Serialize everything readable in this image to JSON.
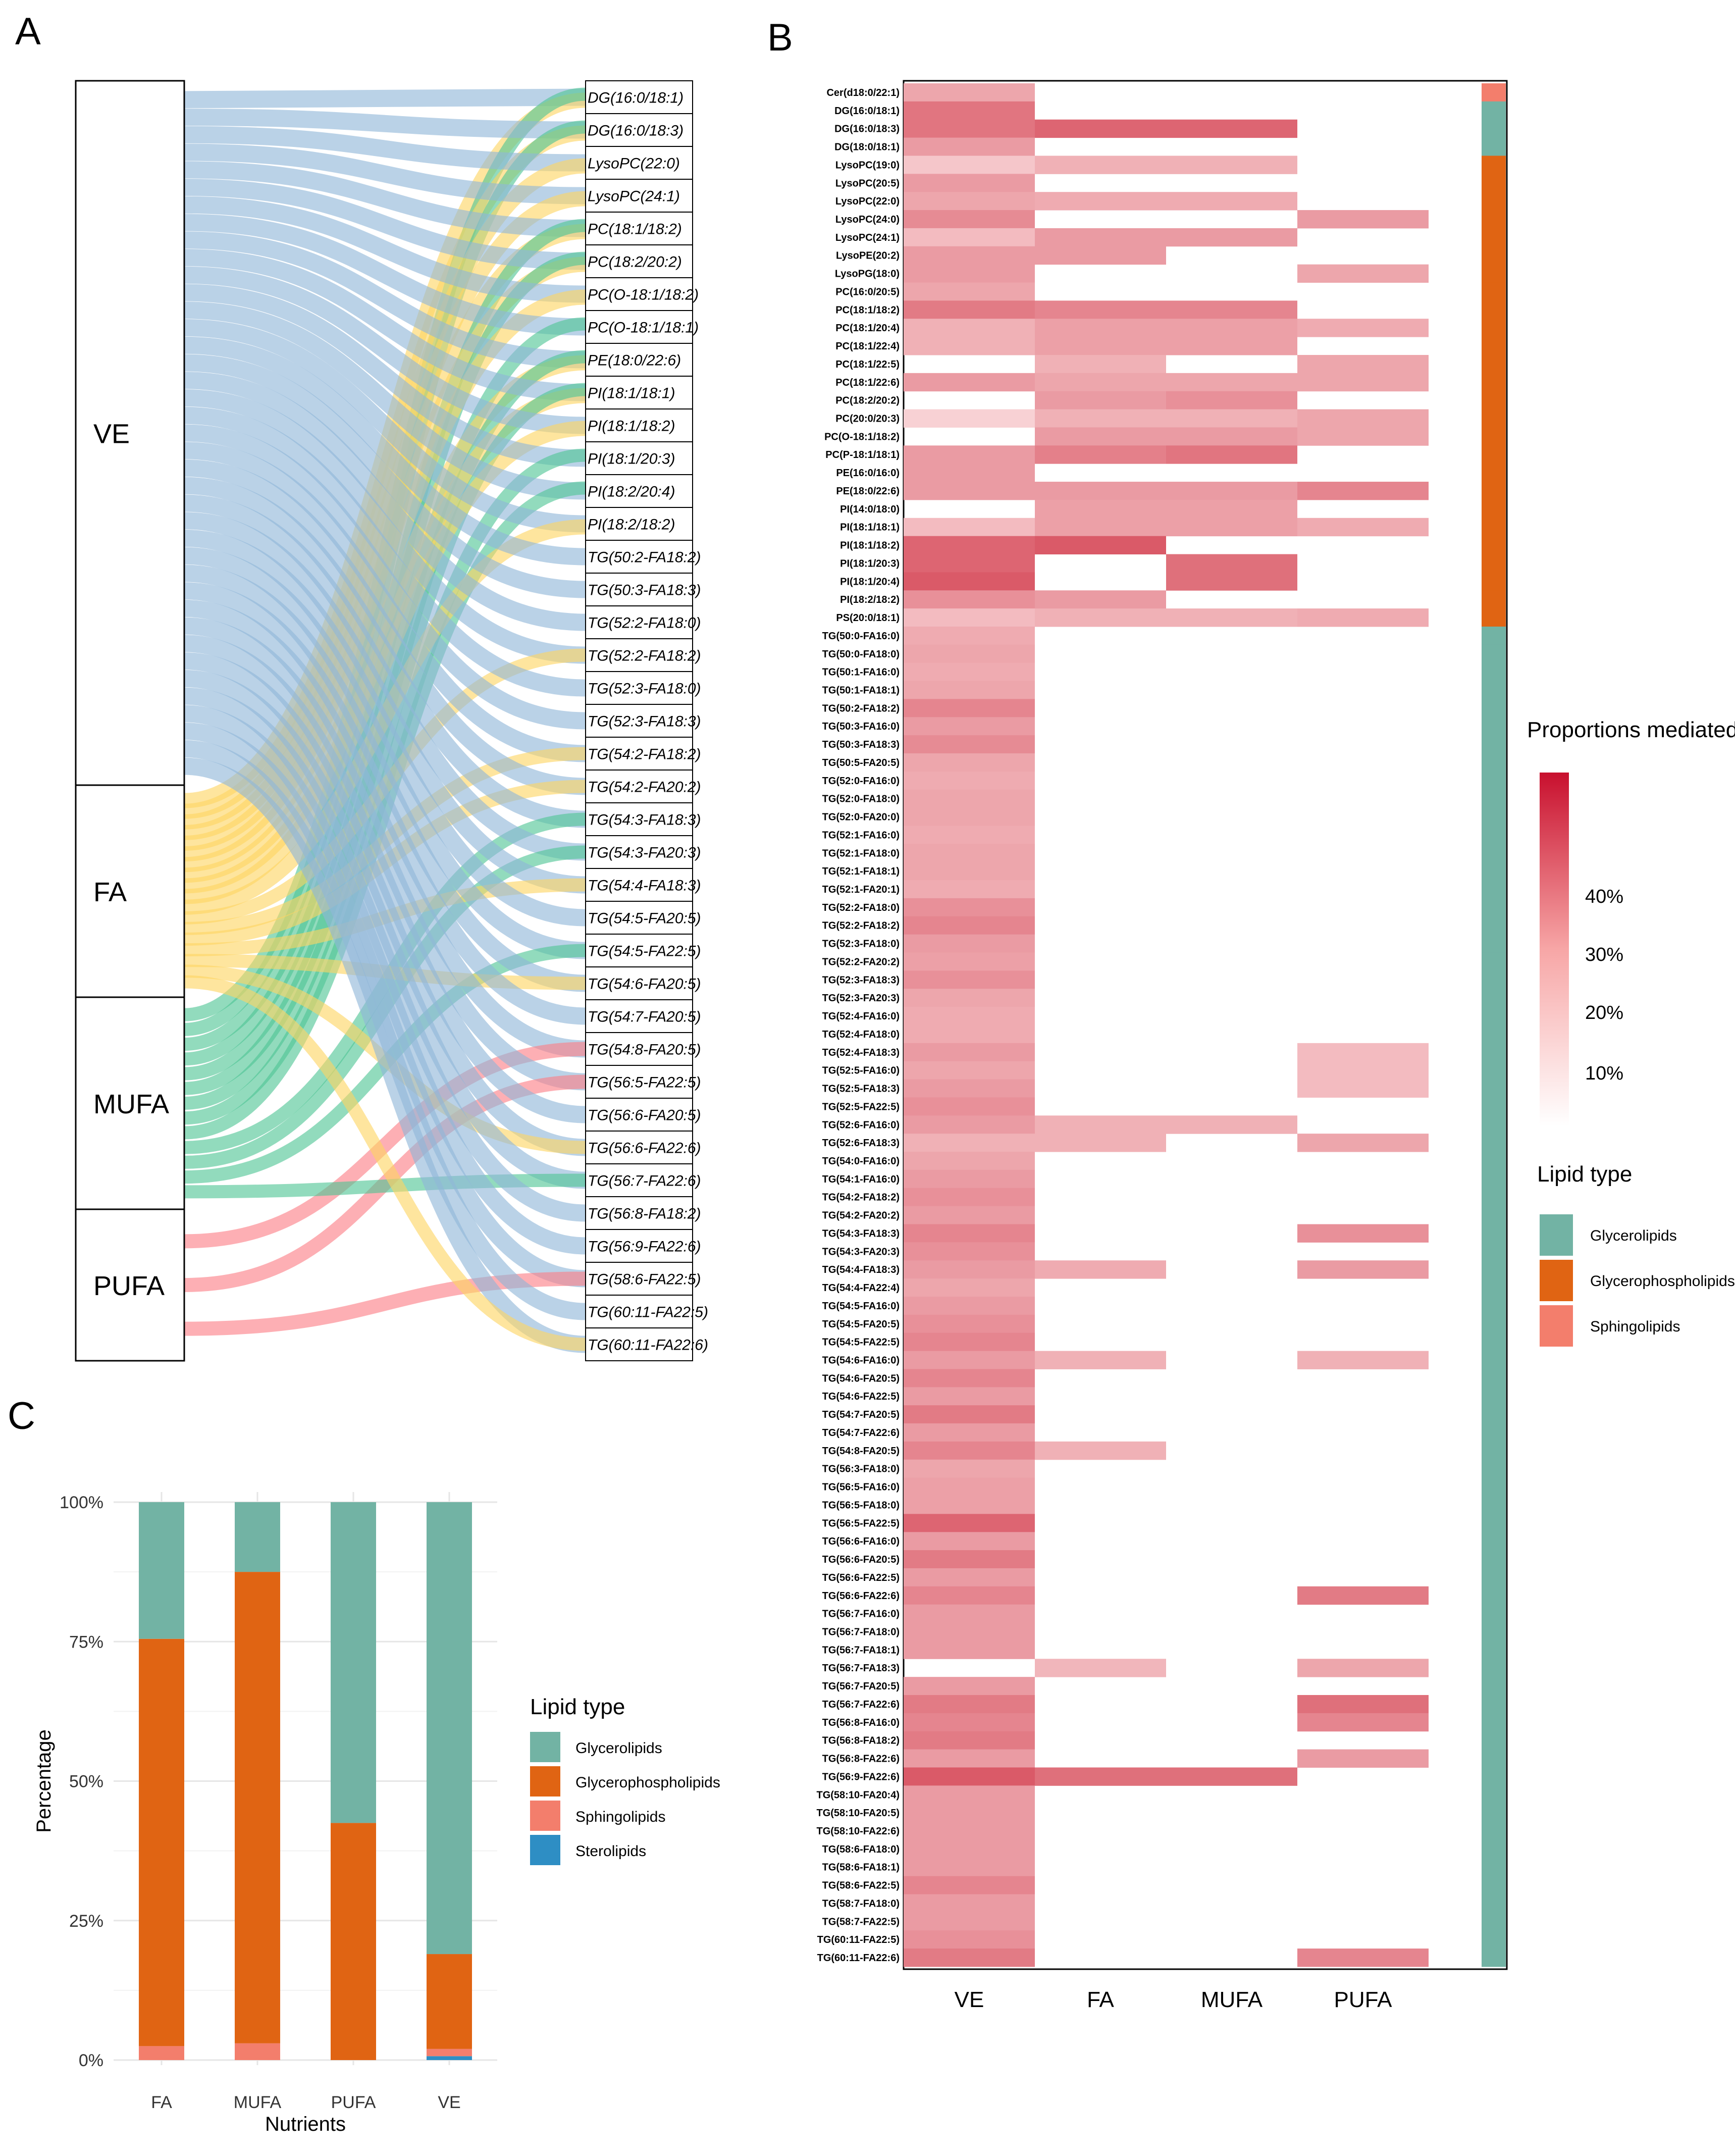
{
  "panels": {
    "a": "A",
    "b": "B",
    "c": "C"
  },
  "colors": {
    "VE": "#8fb6d9",
    "FA": "#fdd562",
    "MUFA": "#4fc595",
    "PUFA": "#fc7e86",
    "Glycerolipids": "#72b3a4",
    "Glycerophospholipids": "#e06413",
    "Sphingolipids": "#f37e6c",
    "Sterolipids": "#2e8ec4"
  },
  "sankey": {
    "sources": [
      "VE",
      "FA",
      "MUFA",
      "PUFA"
    ],
    "targets": [
      "DG(16:0/18:1)",
      "DG(16:0/18:3)",
      "LysoPC(22:0)",
      "LysoPC(24:1)",
      "PC(18:1/18:2)",
      "PC(18:2/20:2)",
      "PC(O-18:1/18:2)",
      "PC(O-18:1/18:1)",
      "PE(18:0/22:6)",
      "PI(18:1/18:1)",
      "PI(18:1/18:2)",
      "PI(18:1/20:3)",
      "PI(18:2/20:4)",
      "PI(18:2/18:2)",
      "TG(50:2-FA18:2)",
      "TG(50:3-FA18:3)",
      "TG(52:2-FA18:0)",
      "TG(52:2-FA18:2)",
      "TG(52:3-FA18:0)",
      "TG(52:3-FA18:3)",
      "TG(54:2-FA18:2)",
      "TG(54:2-FA20:2)",
      "TG(54:3-FA18:3)",
      "TG(54:3-FA20:3)",
      "TG(54:4-FA18:3)",
      "TG(54:5-FA20:5)",
      "TG(54:5-FA22:5)",
      "TG(54:6-FA20:5)",
      "TG(54:7-FA20:5)",
      "TG(54:8-FA20:5)",
      "TG(56:5-FA22:5)",
      "TG(56:6-FA20:5)",
      "TG(56:6-FA22:6)",
      "TG(56:7-FA22:6)",
      "TG(56:8-FA18:2)",
      "TG(56:9-FA22:6)",
      "TG(58:6-FA22:5)",
      "TG(60:11-FA22:5)",
      "TG(60:11-FA22:6)"
    ]
  },
  "heatmap": {
    "columns": [
      "VE",
      "FA",
      "MUFA",
      "PUFA"
    ],
    "legend_title": "Proportions mediated",
    "legend_ticks": [
      "10%",
      "20%",
      "30%",
      "40%"
    ],
    "lipid_type_title": "Lipid type",
    "lipid_types": [
      "Glycerolipids",
      "Glycerophospholipids",
      "Sphingolipids"
    ],
    "rows": [
      {
        "name": "Cer(d18:0/22:1)",
        "type": "Sphingolipids",
        "v": [
          18,
          0,
          0,
          0
        ]
      },
      {
        "name": "DG(16:0/18:1)",
        "type": "Glycerolipids",
        "v": [
          27,
          0,
          0,
          0
        ]
      },
      {
        "name": "DG(16:0/18:3)",
        "type": "Glycerolipids",
        "v": [
          27,
          30,
          30,
          0
        ]
      },
      {
        "name": "DG(18:0/18:1)",
        "type": "Glycerolipids",
        "v": [
          20,
          0,
          0,
          0
        ]
      },
      {
        "name": "LysoPC(19:0)",
        "type": "Glycerophospholipids",
        "v": [
          12,
          16,
          16,
          0
        ]
      },
      {
        "name": "LysoPC(20:5)",
        "type": "Glycerophospholipids",
        "v": [
          20,
          0,
          0,
          0
        ]
      },
      {
        "name": "LysoPC(22:0)",
        "type": "Glycerophospholipids",
        "v": [
          18,
          17,
          17,
          0
        ]
      },
      {
        "name": "LysoPC(24:0)",
        "type": "Glycerophospholipids",
        "v": [
          23,
          0,
          0,
          20
        ]
      },
      {
        "name": "LysoPC(24:1)",
        "type": "Glycerophospholipids",
        "v": [
          14,
          20,
          20,
          0
        ]
      },
      {
        "name": "LysoPE(20:2)",
        "type": "Glycerophospholipids",
        "v": [
          20,
          20,
          0,
          0
        ]
      },
      {
        "name": "LysoPG(18:0)",
        "type": "Glycerophospholipids",
        "v": [
          20,
          0,
          0,
          18
        ]
      },
      {
        "name": "PC(16:0/20:5)",
        "type": "Glycerophospholipids",
        "v": [
          18,
          0,
          0,
          0
        ]
      },
      {
        "name": "PC(18:1/18:2)",
        "type": "Glycerophospholipids",
        "v": [
          26,
          24,
          24,
          0
        ]
      },
      {
        "name": "PC(18:1/20:4)",
        "type": "Glycerophospholipids",
        "v": [
          16,
          19,
          19,
          17
        ]
      },
      {
        "name": "PC(18:1/22:4)",
        "type": "Glycerophospholipids",
        "v": [
          16,
          19,
          19,
          0
        ]
      },
      {
        "name": "PC(18:1/22:5)",
        "type": "Glycerophospholipids",
        "v": [
          0,
          16,
          0,
          18
        ]
      },
      {
        "name": "PC(18:1/22:6)",
        "type": "Glycerophospholipids",
        "v": [
          20,
          18,
          18,
          18
        ]
      },
      {
        "name": "PC(18:2/20:2)",
        "type": "Glycerophospholipids",
        "v": [
          0,
          20,
          22,
          0
        ]
      },
      {
        "name": "PC(20:0/20:3)",
        "type": "Glycerophospholipids",
        "v": [
          10,
          16,
          16,
          18
        ]
      },
      {
        "name": "PC(O-18:1/18:2)",
        "type": "Glycerophospholipids",
        "v": [
          0,
          20,
          20,
          18
        ]
      },
      {
        "name": "PC(P-18:1/18:1)",
        "type": "Glycerophospholipids",
        "v": [
          20,
          25,
          27,
          0
        ]
      },
      {
        "name": "PE(16:0/16:0)",
        "type": "Glycerophospholipids",
        "v": [
          20,
          0,
          0,
          0
        ]
      },
      {
        "name": "PE(18:0/22:6)",
        "type": "Glycerophospholipids",
        "v": [
          20,
          20,
          20,
          24
        ]
      },
      {
        "name": "PI(14:0/18:0)",
        "type": "Glycerophospholipids",
        "v": [
          0,
          19,
          19,
          0
        ]
      },
      {
        "name": "PI(18:1/18:1)",
        "type": "Glycerophospholipids",
        "v": [
          14,
          19,
          19,
          17
        ]
      },
      {
        "name": "PI(18:1/18:2)",
        "type": "Glycerophospholipids",
        "v": [
          30,
          32,
          0,
          0
        ]
      },
      {
        "name": "PI(18:1/20:3)",
        "type": "Glycerophospholipids",
        "v": [
          30,
          0,
          28,
          0
        ]
      },
      {
        "name": "PI(18:1/20:4)",
        "type": "Glycerophospholipids",
        "v": [
          32,
          0,
          28,
          0
        ]
      },
      {
        "name": "PI(18:2/18:2)",
        "type": "Glycerophospholipids",
        "v": [
          22,
          20,
          0,
          0
        ]
      },
      {
        "name": "PS(20:0/18:1)",
        "type": "Glycerophospholipids",
        "v": [
          14,
          16,
          16,
          17
        ]
      },
      {
        "name": "TG(50:0-FA16:0)",
        "type": "Glycerolipids",
        "v": [
          17,
          0,
          0,
          0
        ]
      },
      {
        "name": "TG(50:0-FA18:0)",
        "type": "Glycerolipids",
        "v": [
          18,
          0,
          0,
          0
        ]
      },
      {
        "name": "TG(50:1-FA16:0)",
        "type": "Glycerolipids",
        "v": [
          17,
          0,
          0,
          0
        ]
      },
      {
        "name": "TG(50:1-FA18:1)",
        "type": "Glycerolipids",
        "v": [
          18,
          0,
          0,
          0
        ]
      },
      {
        "name": "TG(50:2-FA18:2)",
        "type": "Glycerolipids",
        "v": [
          24,
          0,
          0,
          0
        ]
      },
      {
        "name": "TG(50:3-FA16:0)",
        "type": "Glycerolipids",
        "v": [
          20,
          0,
          0,
          0
        ]
      },
      {
        "name": "TG(50:3-FA18:3)",
        "type": "Glycerolipids",
        "v": [
          23,
          0,
          0,
          0
        ]
      },
      {
        "name": "TG(50:5-FA20:5)",
        "type": "Glycerolipids",
        "v": [
          18,
          0,
          0,
          0
        ]
      },
      {
        "name": "TG(52:0-FA16:0)",
        "type": "Glycerolipids",
        "v": [
          17,
          0,
          0,
          0
        ]
      },
      {
        "name": "TG(52:0-FA18:0)",
        "type": "Glycerolipids",
        "v": [
          18,
          0,
          0,
          0
        ]
      },
      {
        "name": "TG(52:0-FA20:0)",
        "type": "Glycerolipids",
        "v": [
          18,
          0,
          0,
          0
        ]
      },
      {
        "name": "TG(52:1-FA16:0)",
        "type": "Glycerolipids",
        "v": [
          17,
          0,
          0,
          0
        ]
      },
      {
        "name": "TG(52:1-FA18:0)",
        "type": "Glycerolipids",
        "v": [
          18,
          0,
          0,
          0
        ]
      },
      {
        "name": "TG(52:1-FA18:1)",
        "type": "Glycerolipids",
        "v": [
          18,
          0,
          0,
          0
        ]
      },
      {
        "name": "TG(52:1-FA20:1)",
        "type": "Glycerolipids",
        "v": [
          17,
          0,
          0,
          0
        ]
      },
      {
        "name": "TG(52:2-FA18:0)",
        "type": "Glycerolipids",
        "v": [
          22,
          0,
          0,
          0
        ]
      },
      {
        "name": "TG(52:2-FA18:2)",
        "type": "Glycerolipids",
        "v": [
          24,
          0,
          0,
          0
        ]
      },
      {
        "name": "TG(52:3-FA18:0)",
        "type": "Glycerolipids",
        "v": [
          20,
          0,
          0,
          0
        ]
      },
      {
        "name": "TG(52:2-FA20:2)",
        "type": "Glycerolipids",
        "v": [
          19,
          0,
          0,
          0
        ]
      },
      {
        "name": "TG(52:3-FA18:3)",
        "type": "Glycerolipids",
        "v": [
          22,
          0,
          0,
          0
        ]
      },
      {
        "name": "TG(52:3-FA20:3)",
        "type": "Glycerolipids",
        "v": [
          18,
          0,
          0,
          0
        ]
      },
      {
        "name": "TG(52:4-FA16:0)",
        "type": "Glycerolipids",
        "v": [
          17,
          0,
          0,
          0
        ]
      },
      {
        "name": "TG(52:4-FA18:0)",
        "type": "Glycerolipids",
        "v": [
          17,
          0,
          0,
          0
        ]
      },
      {
        "name": "TG(52:4-FA18:3)",
        "type": "Glycerolipids",
        "v": [
          20,
          0,
          0,
          14
        ]
      },
      {
        "name": "TG(52:5-FA16:0)",
        "type": "Glycerolipids",
        "v": [
          18,
          0,
          0,
          14
        ]
      },
      {
        "name": "TG(52:5-FA18:3)",
        "type": "Glycerolipids",
        "v": [
          20,
          0,
          0,
          14
        ]
      },
      {
        "name": "TG(52:5-FA22:5)",
        "type": "Glycerolipids",
        "v": [
          22,
          0,
          0,
          0
        ]
      },
      {
        "name": "TG(52:6-FA16:0)",
        "type": "Glycerolipids",
        "v": [
          20,
          16,
          16,
          0
        ]
      },
      {
        "name": "TG(52:6-FA18:3)",
        "type": "Glycerolipids",
        "v": [
          16,
          16,
          0,
          18
        ]
      },
      {
        "name": "TG(54:0-FA16:0)",
        "type": "Glycerolipids",
        "v": [
          18,
          0,
          0,
          0
        ]
      },
      {
        "name": "TG(54:1-FA16:0)",
        "type": "Glycerolipids",
        "v": [
          20,
          0,
          0,
          0
        ]
      },
      {
        "name": "TG(54:2-FA18:2)",
        "type": "Glycerolipids",
        "v": [
          22,
          0,
          0,
          0
        ]
      },
      {
        "name": "TG(54:2-FA20:2)",
        "type": "Glycerolipids",
        "v": [
          20,
          0,
          0,
          0
        ]
      },
      {
        "name": "TG(54:3-FA18:3)",
        "type": "Glycerolipids",
        "v": [
          24,
          0,
          0,
          22
        ]
      },
      {
        "name": "TG(54:3-FA20:3)",
        "type": "Glycerolipids",
        "v": [
          22,
          0,
          0,
          0
        ]
      },
      {
        "name": "TG(54:4-FA18:3)",
        "type": "Glycerolipids",
        "v": [
          20,
          17,
          0,
          20
        ]
      },
      {
        "name": "TG(54:4-FA22:4)",
        "type": "Glycerolipids",
        "v": [
          18,
          0,
          0,
          0
        ]
      },
      {
        "name": "TG(54:5-FA16:0)",
        "type": "Glycerolipids",
        "v": [
          20,
          0,
          0,
          0
        ]
      },
      {
        "name": "TG(54:5-FA20:5)",
        "type": "Glycerolipids",
        "v": [
          22,
          0,
          0,
          0
        ]
      },
      {
        "name": "TG(54:5-FA22:5)",
        "type": "Glycerolipids",
        "v": [
          24,
          0,
          0,
          0
        ]
      },
      {
        "name": "TG(54:6-FA16:0)",
        "type": "Glycerolipids",
        "v": [
          20,
          16,
          0,
          16
        ]
      },
      {
        "name": "TG(54:6-FA20:5)",
        "type": "Glycerolipids",
        "v": [
          24,
          0,
          0,
          0
        ]
      },
      {
        "name": "TG(54:6-FA22:5)",
        "type": "Glycerolipids",
        "v": [
          20,
          0,
          0,
          0
        ]
      },
      {
        "name": "TG(54:7-FA20:5)",
        "type": "Glycerolipids",
        "v": [
          26,
          0,
          0,
          0
        ]
      },
      {
        "name": "TG(54:7-FA22:6)",
        "type": "Glycerolipids",
        "v": [
          20,
          0,
          0,
          0
        ]
      },
      {
        "name": "TG(54:8-FA20:5)",
        "type": "Glycerolipids",
        "v": [
          24,
          16,
          0,
          0
        ]
      },
      {
        "name": "TG(56:3-FA18:0)",
        "type": "Glycerolipids",
        "v": [
          18,
          0,
          0,
          0
        ]
      },
      {
        "name": "TG(56:5-FA16:0)",
        "type": "Glycerolipids",
        "v": [
          19,
          0,
          0,
          0
        ]
      },
      {
        "name": "TG(56:5-FA18:0)",
        "type": "Glycerolipids",
        "v": [
          19,
          0,
          0,
          0
        ]
      },
      {
        "name": "TG(56:5-FA22:5)",
        "type": "Glycerolipids",
        "v": [
          30,
          0,
          0,
          0
        ]
      },
      {
        "name": "TG(56:6-FA16:0)",
        "type": "Glycerolipids",
        "v": [
          20,
          0,
          0,
          0
        ]
      },
      {
        "name": "TG(56:6-FA20:5)",
        "type": "Glycerolipids",
        "v": [
          26,
          0,
          0,
          0
        ]
      },
      {
        "name": "TG(56:6-FA22:5)",
        "type": "Glycerolipids",
        "v": [
          20,
          0,
          0,
          0
        ]
      },
      {
        "name": "TG(56:6-FA22:6)",
        "type": "Glycerolipids",
        "v": [
          24,
          0,
          0,
          26
        ]
      },
      {
        "name": "TG(56:7-FA16:0)",
        "type": "Glycerolipids",
        "v": [
          20,
          0,
          0,
          0
        ]
      },
      {
        "name": "TG(56:7-FA18:0)",
        "type": "Glycerolipids",
        "v": [
          20,
          0,
          0,
          0
        ]
      },
      {
        "name": "TG(56:7-FA18:1)",
        "type": "Glycerolipids",
        "v": [
          20,
          0,
          0,
          0
        ]
      },
      {
        "name": "TG(56:7-FA18:3)",
        "type": "Glycerolipids",
        "v": [
          0,
          15,
          0,
          18
        ]
      },
      {
        "name": "TG(56:7-FA20:5)",
        "type": "Glycerolipids",
        "v": [
          20,
          0,
          0,
          0
        ]
      },
      {
        "name": "TG(56:7-FA22:6)",
        "type": "Glycerolipids",
        "v": [
          26,
          0,
          0,
          28
        ]
      },
      {
        "name": "TG(56:8-FA16:0)",
        "type": "Glycerolipids",
        "v": [
          24,
          0,
          0,
          24
        ]
      },
      {
        "name": "TG(56:8-FA18:2)",
        "type": "Glycerolipids",
        "v": [
          26,
          0,
          0,
          0
        ]
      },
      {
        "name": "TG(56:8-FA22:6)",
        "type": "Glycerolipids",
        "v": [
          20,
          0,
          0,
          20
        ]
      },
      {
        "name": "TG(56:9-FA22:6)",
        "type": "Glycerolipids",
        "v": [
          32,
          28,
          28,
          0
        ]
      },
      {
        "name": "TG(58:10-FA20:4)",
        "type": "Glycerolipids",
        "v": [
          20,
          0,
          0,
          0
        ]
      },
      {
        "name": "TG(58:10-FA20:5)",
        "type": "Glycerolipids",
        "v": [
          20,
          0,
          0,
          0
        ]
      },
      {
        "name": "TG(58:10-FA22:6)",
        "type": "Glycerolipids",
        "v": [
          20,
          0,
          0,
          0
        ]
      },
      {
        "name": "TG(58:6-FA18:0)",
        "type": "Glycerolipids",
        "v": [
          20,
          0,
          0,
          0
        ]
      },
      {
        "name": "TG(58:6-FA18:1)",
        "type": "Glycerolipids",
        "v": [
          20,
          0,
          0,
          0
        ]
      },
      {
        "name": "TG(58:6-FA22:5)",
        "type": "Glycerolipids",
        "v": [
          24,
          0,
          0,
          0
        ]
      },
      {
        "name": "TG(58:7-FA18:0)",
        "type": "Glycerolipids",
        "v": [
          20,
          0,
          0,
          0
        ]
      },
      {
        "name": "TG(58:7-FA22:5)",
        "type": "Glycerolipids",
        "v": [
          20,
          0,
          0,
          0
        ]
      },
      {
        "name": "TG(60:11-FA22:5)",
        "type": "Glycerolipids",
        "v": [
          22,
          0,
          0,
          0
        ]
      },
      {
        "name": "TG(60:11-FA22:6)",
        "type": "Glycerolipids",
        "v": [
          26,
          0,
          0,
          24
        ]
      }
    ]
  },
  "chart_data": {
    "type": "bar",
    "stacked": true,
    "categories": [
      "FA",
      "MUFA",
      "PUFA",
      "VE"
    ],
    "xlabel": "Nutrients",
    "ylabel": "Percentage",
    "ylim": [
      0,
      100
    ],
    "yticks": [
      "0%",
      "25%",
      "50%",
      "75%",
      "100%"
    ],
    "legend_title": "Lipid type",
    "legend_position": "right",
    "series": [
      {
        "name": "Glycerolipids",
        "values": [
          24.5,
          12.5,
          57.5,
          81
        ]
      },
      {
        "name": "Glycerophospholipids",
        "values": [
          73,
          84.5,
          42.5,
          17
        ]
      },
      {
        "name": "Sphingolipids",
        "values": [
          2.5,
          3,
          0,
          1.3
        ]
      },
      {
        "name": "Sterolipids",
        "values": [
          0,
          0,
          0,
          0.7
        ]
      }
    ]
  }
}
